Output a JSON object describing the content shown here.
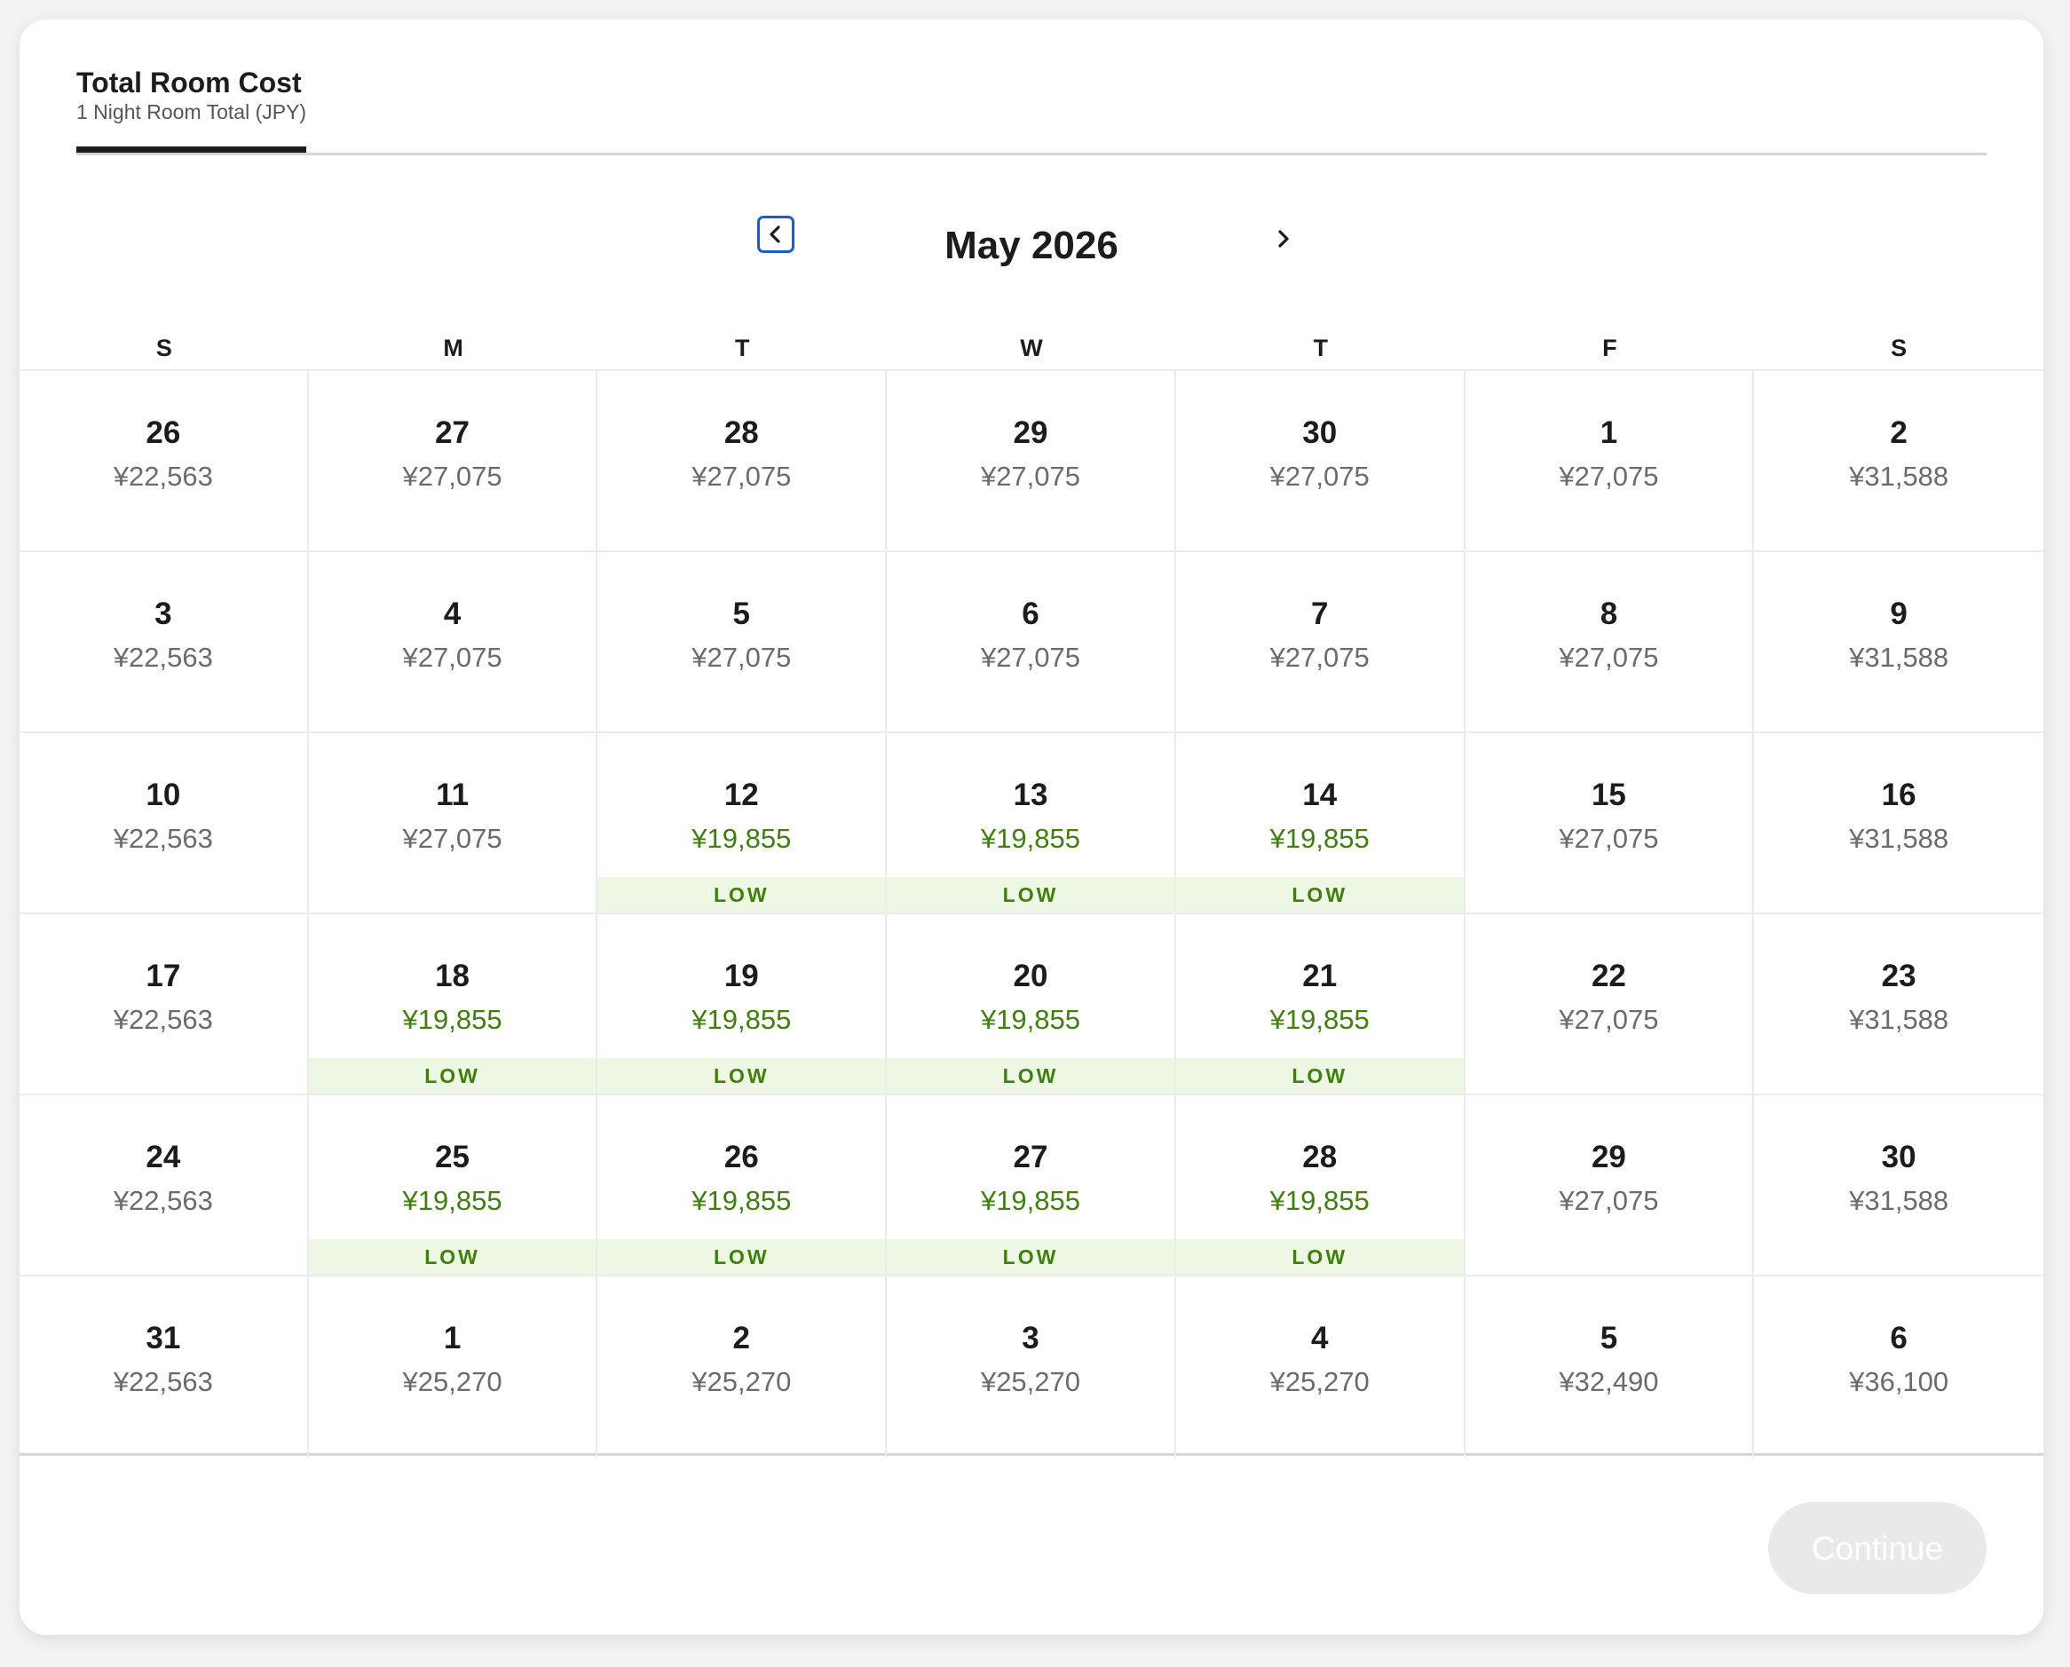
{
  "header": {
    "tab_title": "Total Room Cost",
    "tab_subtitle": "1 Night Room Total (JPY)"
  },
  "calendar": {
    "month_label": "May 2026",
    "prev_icon": "chevron-left-icon",
    "next_icon": "chevron-right-icon",
    "weekdays": [
      "S",
      "M",
      "T",
      "W",
      "T",
      "F",
      "S"
    ],
    "low_label": "LOW",
    "low_color": "#3f7f0c",
    "days": [
      {
        "day": "26",
        "price": "¥22,563",
        "low": false
      },
      {
        "day": "27",
        "price": "¥27,075",
        "low": false
      },
      {
        "day": "28",
        "price": "¥27,075",
        "low": false
      },
      {
        "day": "29",
        "price": "¥27,075",
        "low": false
      },
      {
        "day": "30",
        "price": "¥27,075",
        "low": false
      },
      {
        "day": "1",
        "price": "¥27,075",
        "low": false
      },
      {
        "day": "2",
        "price": "¥31,588",
        "low": false
      },
      {
        "day": "3",
        "price": "¥22,563",
        "low": false
      },
      {
        "day": "4",
        "price": "¥27,075",
        "low": false
      },
      {
        "day": "5",
        "price": "¥27,075",
        "low": false
      },
      {
        "day": "6",
        "price": "¥27,075",
        "low": false
      },
      {
        "day": "7",
        "price": "¥27,075",
        "low": false
      },
      {
        "day": "8",
        "price": "¥27,075",
        "low": false
      },
      {
        "day": "9",
        "price": "¥31,588",
        "low": false
      },
      {
        "day": "10",
        "price": "¥22,563",
        "low": false
      },
      {
        "day": "11",
        "price": "¥27,075",
        "low": false
      },
      {
        "day": "12",
        "price": "¥19,855",
        "low": true
      },
      {
        "day": "13",
        "price": "¥19,855",
        "low": true
      },
      {
        "day": "14",
        "price": "¥19,855",
        "low": true
      },
      {
        "day": "15",
        "price": "¥27,075",
        "low": false
      },
      {
        "day": "16",
        "price": "¥31,588",
        "low": false
      },
      {
        "day": "17",
        "price": "¥22,563",
        "low": false
      },
      {
        "day": "18",
        "price": "¥19,855",
        "low": true
      },
      {
        "day": "19",
        "price": "¥19,855",
        "low": true
      },
      {
        "day": "20",
        "price": "¥19,855",
        "low": true
      },
      {
        "day": "21",
        "price": "¥19,855",
        "low": true
      },
      {
        "day": "22",
        "price": "¥27,075",
        "low": false
      },
      {
        "day": "23",
        "price": "¥31,588",
        "low": false
      },
      {
        "day": "24",
        "price": "¥22,563",
        "low": false
      },
      {
        "day": "25",
        "price": "¥19,855",
        "low": true
      },
      {
        "day": "26",
        "price": "¥19,855",
        "low": true
      },
      {
        "day": "27",
        "price": "¥19,855",
        "low": true
      },
      {
        "day": "28",
        "price": "¥19,855",
        "low": true
      },
      {
        "day": "29",
        "price": "¥27,075",
        "low": false
      },
      {
        "day": "30",
        "price": "¥31,588",
        "low": false
      },
      {
        "day": "31",
        "price": "¥22,563",
        "low": false
      },
      {
        "day": "1",
        "price": "¥25,270",
        "low": false
      },
      {
        "day": "2",
        "price": "¥25,270",
        "low": false
      },
      {
        "day": "3",
        "price": "¥25,270",
        "low": false
      },
      {
        "day": "4",
        "price": "¥25,270",
        "low": false
      },
      {
        "day": "5",
        "price": "¥32,490",
        "low": false
      },
      {
        "day": "6",
        "price": "¥36,100",
        "low": false
      }
    ]
  },
  "footer": {
    "continue_label": "Continue"
  }
}
